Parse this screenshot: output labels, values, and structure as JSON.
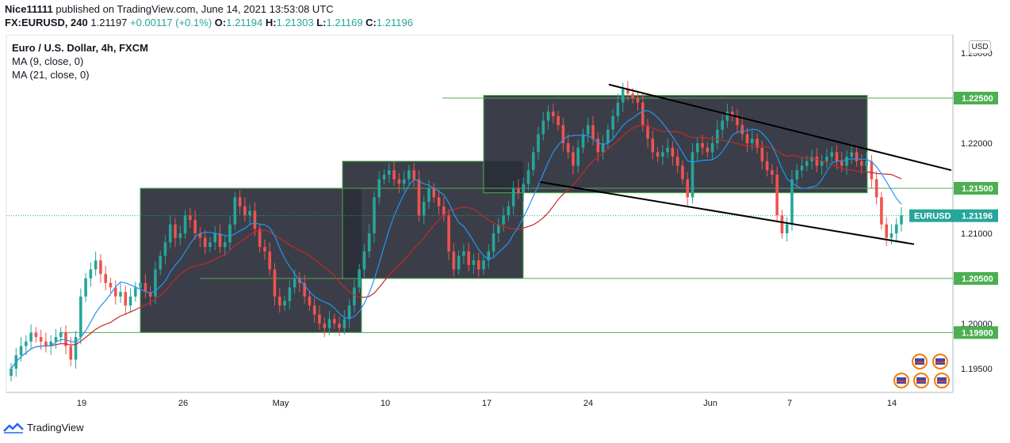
{
  "header": {
    "publisher_name": "Nice11111",
    "publisher_text": "published on TradingView.com, June 14, 2021 13:53:08 UTC",
    "symbol": "FX:EURUSD, 240",
    "last": "1.21197",
    "change": "+0.00117 (+0.1%)",
    "o_label": "O:",
    "o_value": "1.21194",
    "h_label": "H:",
    "h_value": "1.21303",
    "l_label": "L:",
    "l_value": "1.21169",
    "c_label": "C:",
    "c_value": "1.21196"
  },
  "legend": {
    "title": "Euro / U.S. Dollar, 4h, FXCM",
    "ma1": "MA (9, close, 0)",
    "ma2": "MA (21, close, 0)"
  },
  "currency_button": "USD",
  "footer_brand": "TradingView",
  "colors": {
    "up": "#26a69a",
    "down": "#ef5350",
    "ma9": "#2196f3",
    "ma21": "#c62828",
    "box": "#2a2e39",
    "level": "#4caf50",
    "axis_text": "#131722"
  },
  "chart_data": {
    "type": "candlestick",
    "symbol": "EURUSD",
    "last_price": 1.21196,
    "y_axis_ticks": [
      1.225,
      1.22,
      1.215,
      1.21,
      1.205,
      1.2,
      1.195
    ],
    "y_axis_tick_labels": [
      "1.22500",
      "1.22000",
      "1.21500",
      "1.21000",
      "1.20500",
      "1.20000",
      "1.19500"
    ],
    "top_partial_tick": "1.23000",
    "x_axis_labels": [
      "19",
      "26",
      "May",
      "10",
      "17",
      "24",
      "Jun",
      "7",
      "14"
    ],
    "horizontal_levels": [
      {
        "value": 1.225,
        "label": "1.22500"
      },
      {
        "value": 1.215,
        "label": "1.21500"
      },
      {
        "value": 1.205,
        "label": "1.20500"
      },
      {
        "value": 1.199,
        "label": "1.19900"
      }
    ],
    "price_tag": {
      "name": "EURUSD",
      "value": "1.21196"
    },
    "boxes": [
      {
        "from": "Apr 23",
        "to": "May 7",
        "low": 1.199,
        "high": 1.215
      },
      {
        "from": "May 7",
        "to": "May 18",
        "low": 1.205,
        "high": 1.218
      },
      {
        "from": "May 18",
        "to": "Jun 11",
        "low": 1.2145,
        "high": 1.2253
      }
    ],
    "trendlines": [
      {
        "from_date": "May 25",
        "from": 1.2265,
        "to_date": "Jun 16",
        "to": 1.217
      },
      {
        "from_date": "May 20",
        "from": 1.2157,
        "to_date": "Jun 15",
        "to": 1.2088
      }
    ],
    "series": [
      {
        "name": "MA (9, close, 0)",
        "color": "#2196f3"
      },
      {
        "name": "MA (21, close, 0)",
        "color": "#c62828"
      }
    ],
    "closes": [
      1.195,
      1.1965,
      1.1975,
      1.198,
      1.199,
      1.1985,
      1.198,
      1.1975,
      1.198,
      1.1985,
      1.199,
      1.1975,
      1.196,
      1.1985,
      1.203,
      1.205,
      1.206,
      1.207,
      1.2055,
      1.2045,
      1.204,
      1.203,
      1.2035,
      1.202,
      1.203,
      1.204,
      1.2045,
      1.2035,
      1.203,
      1.206,
      1.2075,
      1.209,
      1.211,
      1.2095,
      1.21,
      1.212,
      1.2115,
      1.21,
      1.2095,
      1.2085,
      1.209,
      1.21,
      1.2085,
      1.209,
      1.211,
      1.214,
      1.213,
      1.212,
      1.2125,
      1.2105,
      1.2085,
      1.208,
      1.206,
      1.203,
      1.202,
      1.2025,
      1.204,
      1.205,
      1.2045,
      1.203,
      1.202,
      1.201,
      1.2,
      1.1995,
      1.2005,
      1.2,
      1.1995,
      1.2005,
      1.202,
      1.204,
      1.206,
      1.208,
      1.21,
      1.214,
      1.216,
      1.2165,
      1.217,
      1.216,
      1.2155,
      1.216,
      1.217,
      1.216,
      1.212,
      1.2135,
      1.215,
      1.214,
      1.213,
      1.212,
      1.208,
      1.206,
      1.2075,
      1.208,
      1.2065,
      1.207,
      1.206,
      1.207,
      1.208,
      1.21,
      1.211,
      1.212,
      1.213,
      1.215,
      1.2145,
      1.2155,
      1.217,
      1.219,
      1.221,
      1.2225,
      1.2235,
      1.223,
      1.222,
      1.22,
      1.219,
      1.2175,
      1.2195,
      1.221,
      1.222,
      1.2205,
      1.219,
      1.22,
      1.2215,
      1.223,
      1.2245,
      1.226,
      1.2255,
      1.225,
      1.2245,
      1.222,
      1.2205,
      1.219,
      1.2185,
      1.219,
      1.2195,
      1.2185,
      1.2175,
      1.216,
      1.214,
      1.219,
      1.22,
      1.2195,
      1.219,
      1.22,
      1.2215,
      1.2225,
      1.2235,
      1.223,
      1.222,
      1.221,
      1.22,
      1.2205,
      1.2195,
      1.218,
      1.217,
      1.2165,
      1.212,
      1.21,
      1.211,
      1.216,
      1.217,
      1.2175,
      1.218,
      1.2185,
      1.2175,
      1.218,
      1.2185,
      1.219,
      1.218,
      1.2175,
      1.2185,
      1.219,
      1.218,
      1.2175,
      1.218,
      1.216,
      1.214,
      1.211,
      1.2095,
      1.21,
      1.211,
      1.212
    ]
  }
}
